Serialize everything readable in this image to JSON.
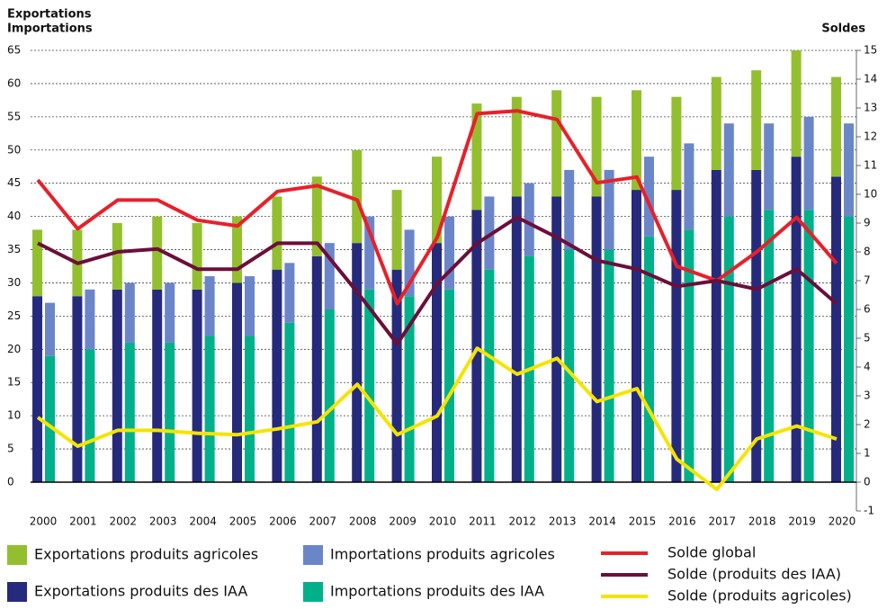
{
  "chart_data": {
    "type": "bar",
    "y_label_lines": [
      "Exportations",
      "Importations"
    ],
    "y2_label": "Soldes",
    "categories": [
      "2000",
      "2001",
      "2002",
      "2003",
      "2004",
      "2005",
      "2006",
      "2007",
      "2008",
      "2009",
      "2010",
      "2011",
      "2012",
      "2013",
      "2014",
      "2015",
      "2016",
      "2017",
      "2018",
      "2019",
      "2020"
    ],
    "ylim": [
      0,
      65
    ],
    "yticks": [
      0,
      5,
      10,
      15,
      20,
      25,
      30,
      35,
      40,
      45,
      50,
      55,
      60,
      65
    ],
    "y2lim": [
      -1,
      15
    ],
    "y2ticks": [
      -1,
      0,
      1,
      2,
      3,
      4,
      5,
      6,
      7,
      8,
      9,
      10,
      11,
      12,
      13,
      14,
      15
    ],
    "grid": true,
    "series": [
      {
        "name": "Exportations produits des IAA",
        "color": "#262a7c",
        "stack": "exports",
        "values": [
          28,
          28,
          29,
          29,
          29,
          30,
          32,
          34,
          36,
          32,
          36,
          41,
          43,
          43,
          43,
          44,
          44,
          47,
          47,
          49,
          46
        ]
      },
      {
        "name": "Exportations produits agricoles",
        "color": "#93bf2f",
        "stack": "exports",
        "values": [
          10,
          10,
          10,
          11,
          10,
          10,
          11,
          12,
          14,
          12,
          13,
          16,
          15,
          16,
          15,
          15,
          14,
          14,
          15,
          16,
          15
        ]
      },
      {
        "name": "Importations produits des IAA",
        "color": "#00b08a",
        "stack": "imports",
        "values": [
          19,
          20,
          21,
          21,
          22,
          22,
          24,
          26,
          29,
          28,
          29,
          32,
          34,
          35,
          35,
          37,
          38,
          40,
          41,
          41,
          40
        ]
      },
      {
        "name": "Importations produits agricoles",
        "color": "#6b85c9",
        "stack": "imports",
        "values": [
          8,
          9,
          9,
          9,
          9,
          9,
          9,
          10,
          11,
          10,
          11,
          11,
          11,
          12,
          12,
          12,
          13,
          14,
          13,
          14,
          14
        ]
      },
      {
        "name": "Solde global",
        "color": "#e8202a",
        "type": "line",
        "axis": "y2",
        "values": [
          10.5,
          8.8,
          9.8,
          9.8,
          9.1,
          8.9,
          10.1,
          10.3,
          9.8,
          6.2,
          8.5,
          12.8,
          12.9,
          12.6,
          10.4,
          10.6,
          7.5,
          7.0,
          8.0,
          9.2,
          7.6
        ]
      },
      {
        "name": "Solde (produits des IAA)",
        "color": "#6b0f3a",
        "type": "line",
        "axis": "y2",
        "values": [
          8.3,
          7.6,
          8.0,
          8.1,
          7.4,
          7.4,
          8.3,
          8.3,
          6.6,
          4.8,
          6.9,
          8.3,
          9.2,
          8.5,
          7.7,
          7.4,
          6.8,
          7.0,
          6.7,
          7.4,
          6.2
        ]
      },
      {
        "name": "Solde (produits agricoles)",
        "color": "#f5e400",
        "type": "line",
        "axis": "y2",
        "values": [
          2.25,
          1.25,
          1.8,
          1.8,
          1.7,
          1.65,
          1.85,
          2.1,
          3.4,
          1.65,
          2.3,
          4.65,
          3.75,
          4.3,
          2.8,
          3.25,
          0.8,
          -0.25,
          1.5,
          1.95,
          1.5
        ]
      }
    ]
  }
}
